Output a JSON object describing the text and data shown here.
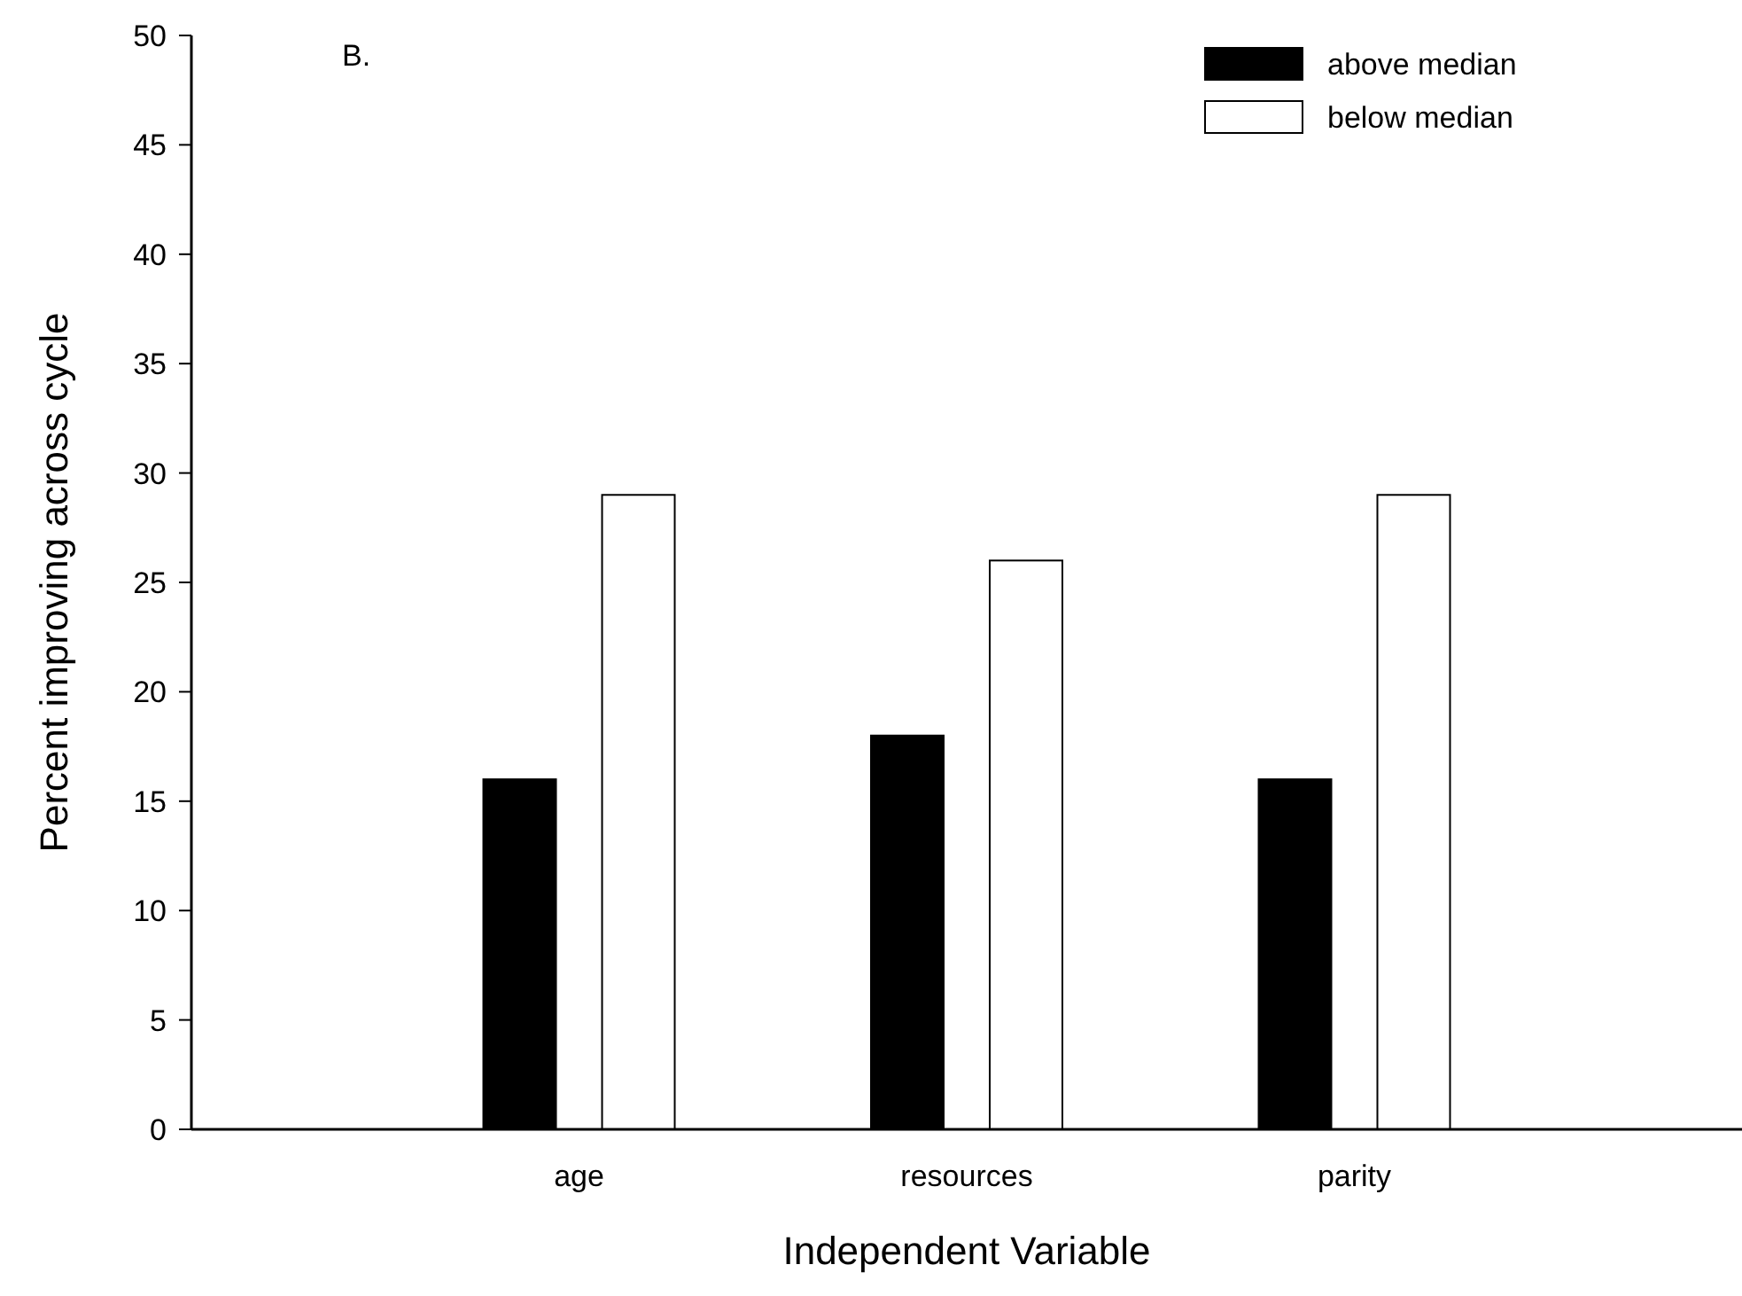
{
  "chart_data": {
    "type": "bar",
    "xlabel": "Independent Variable",
    "ylabel": "Percent improving across cycle",
    "annotations": [
      "B."
    ],
    "categories": [
      "age",
      "resources",
      "parity"
    ],
    "series": [
      {
        "name": "above median",
        "color": "#000000",
        "values": [
          16,
          18,
          16
        ]
      },
      {
        "name": "below median",
        "color": "#ffffff",
        "values": [
          29,
          26,
          29
        ]
      }
    ],
    "ylim": [
      0,
      50
    ],
    "yticks": [
      0,
      5,
      10,
      15,
      20,
      25,
      30,
      35,
      40,
      45,
      50
    ],
    "grid": false,
    "legend": "top right"
  }
}
